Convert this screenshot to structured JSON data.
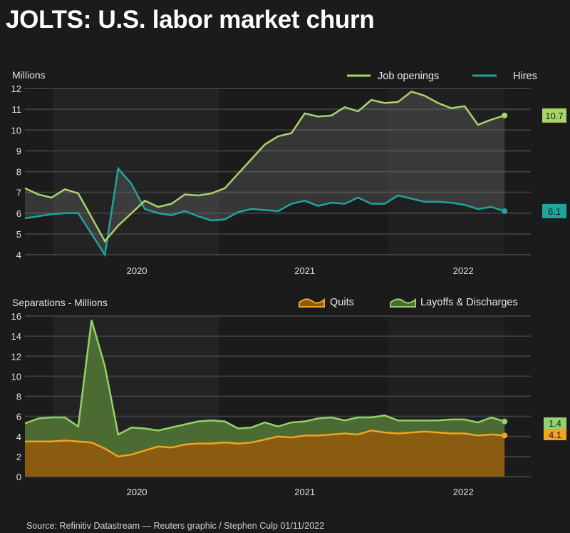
{
  "title": "JOLTS: U.S. labor market churn",
  "source": "Source: Refinitiv Datastream — Reuters graphic / Stephen Culp 01/11/2022",
  "colors": {
    "job_openings": "#a8d46a",
    "hires": "#1ea59c",
    "quits_line": "#f2a321",
    "quits_fill": "#8a5c12",
    "layoffs_line": "#93d26a",
    "layoffs_fill": "#4b6b32",
    "background": "#1b1b1b"
  },
  "chart_data": [
    {
      "type": "line",
      "ylabel": "Millions",
      "ylim": [
        4,
        12
      ],
      "yticks": [
        4,
        5,
        6,
        7,
        8,
        9,
        10,
        11,
        12
      ],
      "x_tick_labels": [
        {
          "label": "2020",
          "month_index": 8.4
        },
        {
          "label": "2021",
          "month_index": 21
        },
        {
          "label": "2022",
          "month_index": 32.9
        }
      ],
      "legend_position": "top-right",
      "grid": true,
      "series": [
        {
          "name": "Job openings",
          "end_label": "10.7",
          "values": [
            7.2,
            6.9,
            6.75,
            7.15,
            6.95,
            5.8,
            4.65,
            5.4,
            6.0,
            6.6,
            6.3,
            6.45,
            6.9,
            6.85,
            6.95,
            7.2,
            7.9,
            8.6,
            9.3,
            9.7,
            9.85,
            10.8,
            10.65,
            10.7,
            11.1,
            10.9,
            11.45,
            11.3,
            11.35,
            11.85,
            11.65,
            11.3,
            11.05,
            11.15,
            10.25,
            10.5,
            10.7
          ]
        },
        {
          "name": "Hires",
          "end_label": "6.1",
          "values": [
            5.75,
            5.85,
            5.95,
            6.0,
            6.0,
            5.0,
            4.0,
            8.15,
            7.4,
            6.2,
            6.0,
            5.9,
            6.1,
            5.85,
            5.65,
            5.7,
            6.05,
            6.2,
            6.15,
            6.1,
            6.45,
            6.6,
            6.35,
            6.5,
            6.45,
            6.75,
            6.45,
            6.45,
            6.85,
            6.7,
            6.55,
            6.55,
            6.5,
            6.4,
            6.2,
            6.3,
            6.1
          ]
        }
      ]
    },
    {
      "type": "area",
      "stacked": true,
      "ylabel": "Separations - Millions",
      "ylim": [
        0,
        16
      ],
      "yticks": [
        0,
        2,
        4,
        6,
        8,
        10,
        12,
        14,
        16
      ],
      "x_tick_labels": [
        {
          "label": "2020",
          "month_index": 8.4
        },
        {
          "label": "2021",
          "month_index": 21
        },
        {
          "label": "2022",
          "month_index": 32.9
        }
      ],
      "legend_position": "top-right",
      "grid": true,
      "series": [
        {
          "name": "Quits",
          "end_label": "4.1",
          "values": [
            3.5,
            3.5,
            3.5,
            3.6,
            3.5,
            3.4,
            2.8,
            2.0,
            2.2,
            2.6,
            3.0,
            2.9,
            3.2,
            3.3,
            3.3,
            3.4,
            3.3,
            3.4,
            3.7,
            4.0,
            3.9,
            4.1,
            4.1,
            4.2,
            4.3,
            4.2,
            4.6,
            4.4,
            4.3,
            4.4,
            4.5,
            4.4,
            4.3,
            4.3,
            4.1,
            4.2,
            4.1
          ]
        },
        {
          "name": "Layoffs & Discharges",
          "end_label": "1.4",
          "values": [
            1.8,
            2.3,
            2.4,
            2.3,
            1.5,
            12.2,
            8.2,
            2.2,
            2.7,
            2.2,
            1.6,
            2.0,
            2.0,
            2.2,
            2.3,
            2.1,
            1.5,
            1.5,
            1.7,
            1.0,
            1.5,
            1.4,
            1.7,
            1.7,
            1.3,
            1.7,
            1.3,
            1.7,
            1.3,
            1.2,
            1.1,
            1.2,
            1.4,
            1.4,
            1.3,
            1.7,
            1.4
          ]
        }
      ]
    }
  ]
}
